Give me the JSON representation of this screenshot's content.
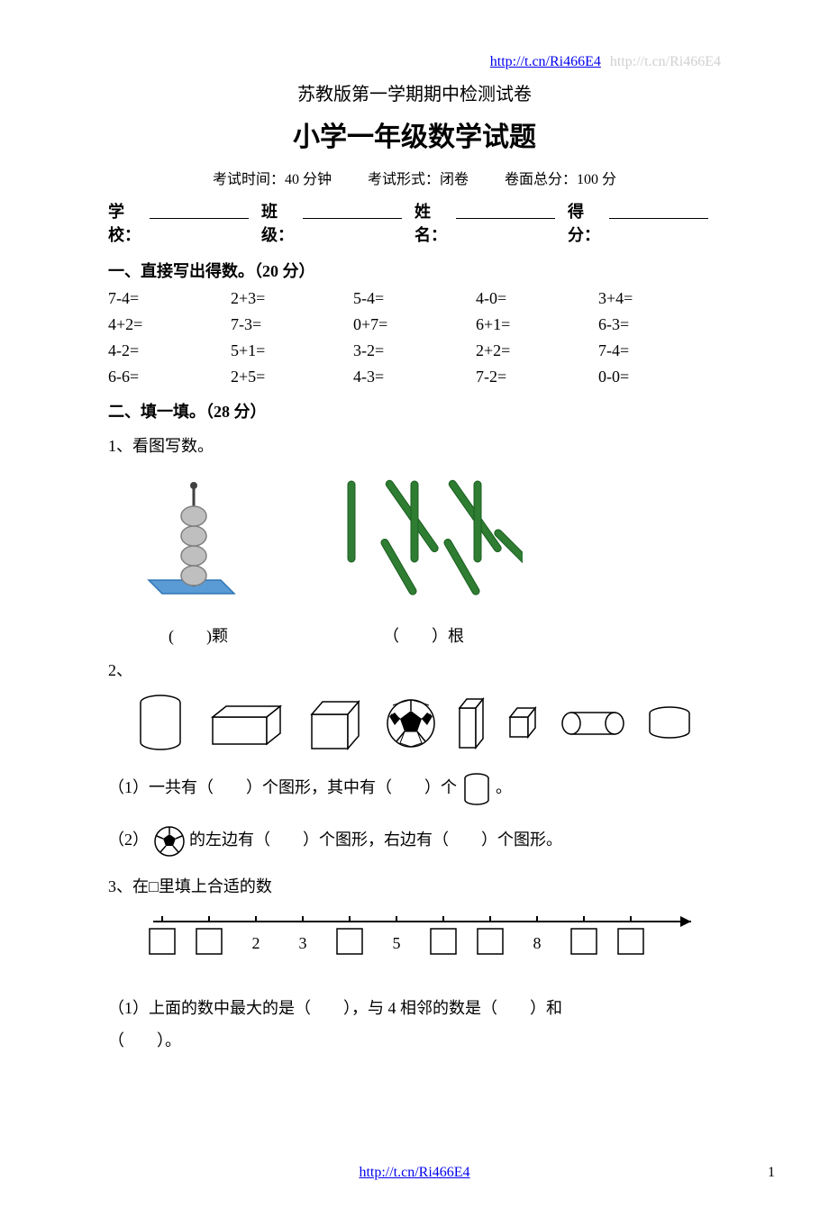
{
  "link": {
    "url": "http://t.cn/Ri466E4",
    "shadow": "http://t.cn/Ri466E4"
  },
  "titles": {
    "subtitle": "苏教版第一学期期中检测试卷",
    "main": "小学一年级数学试题"
  },
  "meta": {
    "time": "考试时间：40 分钟",
    "form": "考试形式：闭卷",
    "total": "卷面总分：100 分"
  },
  "info_labels": {
    "school": "学校：",
    "class": "班级：",
    "name": "姓名：",
    "score": "得分："
  },
  "section1": {
    "heading": "一、直接写出得数。（20 分）",
    "rows": [
      [
        "7-4=",
        "2+3=",
        "5-4=",
        "4-0=",
        "3+4="
      ],
      [
        "4+2=",
        "7-3=",
        "0+7=",
        "6+1=",
        "6-3="
      ],
      [
        "4-2=",
        "5+1=",
        "3-2=",
        "2+2=",
        "7-4="
      ],
      [
        "6-6=",
        "2+5=",
        "4-3=",
        "7-2=",
        "0-0="
      ]
    ]
  },
  "section2": {
    "heading": "二、填一填。（28 分）",
    "q1": {
      "prompt": "1、看图写数。",
      "cap_beads": "(　　)颗",
      "cap_sticks": "（　　）根",
      "beads": {
        "count": 4,
        "bead_fill": "#bfbfbf",
        "bead_stroke": "#7f7f7f",
        "rod_color": "#404040",
        "base_fill": "#5b9bd5",
        "base_stroke": "#2e75b6"
      },
      "sticks": {
        "count": 8,
        "fill": "#2e7d32",
        "stroke": "#1b5e20"
      }
    },
    "q2": {
      "prompt": "2、",
      "shapes_fill": "#ffffff",
      "shapes_stroke": "#000000",
      "soccer": {
        "fill": "#ffffff",
        "patch": "#000000"
      },
      "sub1_a": "（1）一共有（　　）个图形，其中有（　　）个",
      "sub1_b": "。",
      "sub2_a": "（2）",
      "sub2_b": "的左边有（　　）个图形，右边有（　　）个图形。"
    },
    "q3": {
      "prompt": "3、在□里填上合适的数",
      "labels": [
        "",
        "",
        "2",
        "3",
        "",
        "5",
        "",
        "",
        "8",
        "",
        ""
      ],
      "boxed": [
        true,
        true,
        false,
        false,
        true,
        false,
        true,
        true,
        false,
        true,
        true
      ],
      "sub1": "（1）上面的数中最大的是（　　），与 4 相邻的数是（　　）和",
      "sub1_b": "（　　）。"
    }
  },
  "footer": {
    "url": "http://t.cn/Ri466E4",
    "pagenum": "1"
  }
}
